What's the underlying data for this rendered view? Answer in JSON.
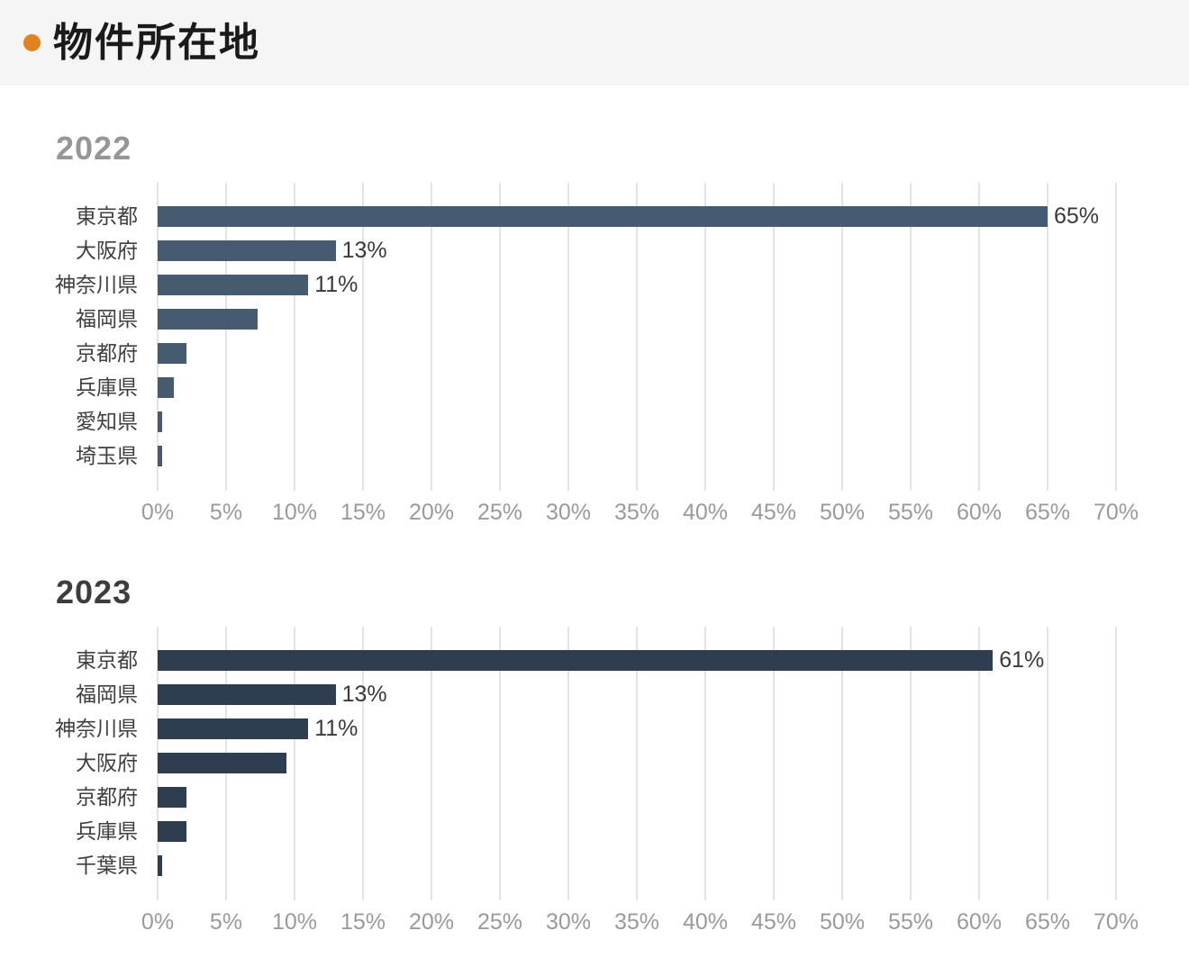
{
  "header": {
    "title": "物件所在地",
    "bullet_color": "#e0821e"
  },
  "chart_data": [
    {
      "type": "bar",
      "orientation": "horizontal",
      "title": "2022",
      "title_color": "#969696",
      "bar_color": "#465a70",
      "categories": [
        "東京都",
        "大阪府",
        "神奈川県",
        "福岡県",
        "京都府",
        "兵庫県",
        "愛知県",
        "埼玉県"
      ],
      "values": [
        65,
        13,
        11,
        7.3,
        2.1,
        1.2,
        0.3,
        0.3
      ],
      "value_labels": [
        "65%",
        "13%",
        "11%",
        "",
        "",
        "",
        "",
        ""
      ],
      "xlabel": "",
      "ylabel": "",
      "xlim": [
        0,
        70
      ],
      "grid": true,
      "legend": false,
      "gridline_color": "#e3e3e3",
      "tick_color": "#9a9a9a",
      "x_ticks": [
        "0%",
        "5%",
        "10%",
        "15%",
        "20%",
        "25%",
        "30%",
        "35%",
        "40%",
        "45%",
        "50%",
        "55%",
        "60%",
        "65%",
        "70%"
      ]
    },
    {
      "type": "bar",
      "orientation": "horizontal",
      "title": "2023",
      "title_color": "#3d3d3d",
      "bar_color": "#2e3e50",
      "categories": [
        "東京都",
        "福岡県",
        "神奈川県",
        "大阪府",
        "京都府",
        "兵庫県",
        "千葉県"
      ],
      "values": [
        61,
        13,
        11,
        9.4,
        2.1,
        2.1,
        0.3
      ],
      "value_labels": [
        "61%",
        "13%",
        "11%",
        "",
        "",
        "",
        ""
      ],
      "xlabel": "",
      "ylabel": "",
      "xlim": [
        0,
        70
      ],
      "grid": true,
      "legend": false,
      "gridline_color": "#e3e3e3",
      "tick_color": "#9a9a9a",
      "x_ticks": [
        "0%",
        "5%",
        "10%",
        "15%",
        "20%",
        "25%",
        "30%",
        "35%",
        "40%",
        "45%",
        "50%",
        "55%",
        "60%",
        "65%",
        "70%"
      ]
    }
  ]
}
